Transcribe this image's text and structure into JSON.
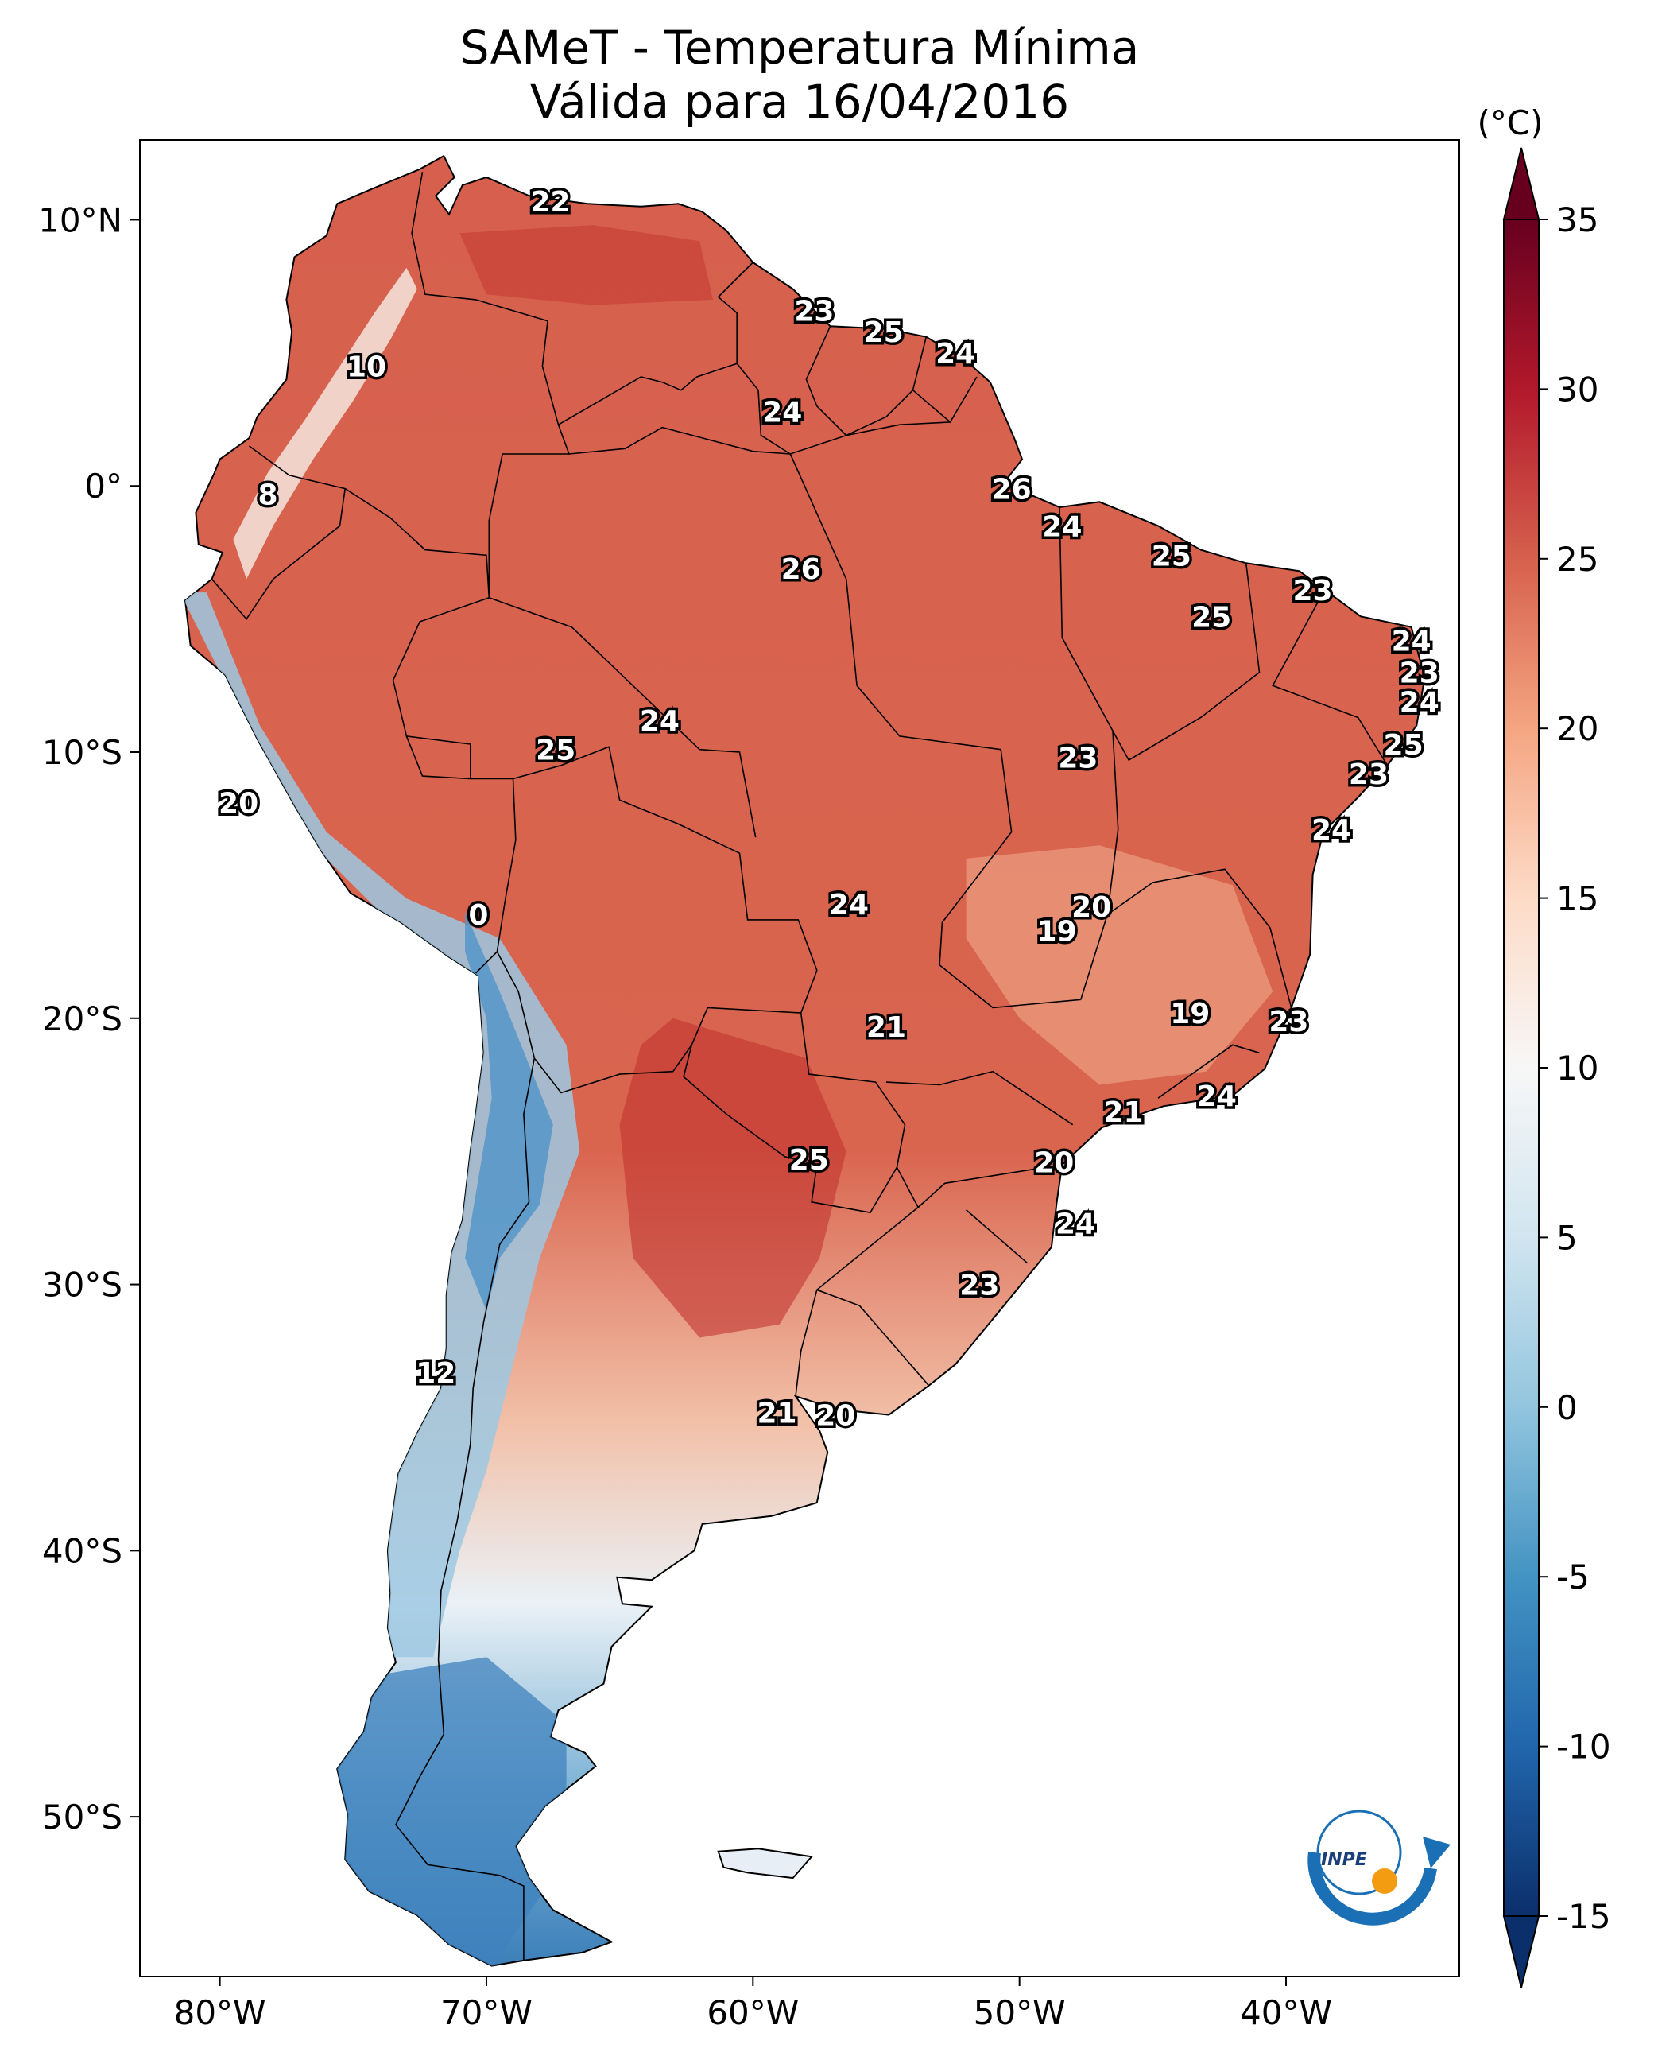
{
  "title_line1": "SAMeT - Temperatura Mínima",
  "title_line2": "Válida para 16/04/2016",
  "colorbar": {
    "unit": "(°C)",
    "ticks": [
      "35",
      "30",
      "25",
      "20",
      "15",
      "10",
      "5",
      "0",
      "-5",
      "-10",
      "-15"
    ],
    "tick_values": [
      35,
      30,
      25,
      20,
      15,
      10,
      5,
      0,
      -5,
      -10,
      -15
    ],
    "range": [
      -15,
      35
    ],
    "colors": [
      "#0b2f6b",
      "#2166ac",
      "#4393c3",
      "#92c5de",
      "#d1e5f0",
      "#f7f7f7",
      "#fddbc7",
      "#f4a582",
      "#d6604d",
      "#b2182b",
      "#67001f"
    ]
  },
  "axes": {
    "lon_labels": [
      "80°W",
      "70°W",
      "60°W",
      "50°W",
      "40°W"
    ],
    "lon_values": [
      -80,
      -70,
      -60,
      -50,
      -40
    ],
    "lat_labels": [
      "10°N",
      "0°",
      "10°S",
      "20°S",
      "30°S",
      "40°S",
      "50°S"
    ],
    "lat_values": [
      10,
      0,
      -10,
      -20,
      -30,
      -40,
      -50
    ],
    "extent": {
      "lon": [
        -83,
        -33.5
      ],
      "lat": [
        -56,
        13
      ]
    }
  },
  "isotherm_labels": [
    {
      "t": "22",
      "lon": -67.6,
      "lat": 10.7
    },
    {
      "t": "10",
      "lon": -74.5,
      "lat": 4.5
    },
    {
      "t": "8",
      "lon": -78.2,
      "lat": -0.3
    },
    {
      "t": "23",
      "lon": -57.7,
      "lat": 6.6
    },
    {
      "t": "25",
      "lon": -55.1,
      "lat": 5.8
    },
    {
      "t": "24",
      "lon": -52.4,
      "lat": 5.0
    },
    {
      "t": "24",
      "lon": -58.9,
      "lat": 2.8
    },
    {
      "t": "26",
      "lon": -50.3,
      "lat": -0.1
    },
    {
      "t": "24",
      "lon": -48.4,
      "lat": -1.5
    },
    {
      "t": "26",
      "lon": -58.2,
      "lat": -3.1
    },
    {
      "t": "25",
      "lon": -44.3,
      "lat": -2.6
    },
    {
      "t": "23",
      "lon": -39.0,
      "lat": -3.9
    },
    {
      "t": "25",
      "lon": -42.8,
      "lat": -4.9
    },
    {
      "t": "24",
      "lon": -35.3,
      "lat": -5.8
    },
    {
      "t": "23",
      "lon": -35.0,
      "lat": -7.0
    },
    {
      "t": "24",
      "lon": -35.0,
      "lat": -8.1
    },
    {
      "t": "25",
      "lon": -35.6,
      "lat": -9.7
    },
    {
      "t": "23",
      "lon": -36.9,
      "lat": -10.8
    },
    {
      "t": "24",
      "lon": -38.3,
      "lat": -12.9
    },
    {
      "t": "23",
      "lon": -47.8,
      "lat": -10.2
    },
    {
      "t": "24",
      "lon": -63.5,
      "lat": -8.8
    },
    {
      "t": "25",
      "lon": -67.4,
      "lat": -9.9
    },
    {
      "t": "20",
      "lon": -79.3,
      "lat": -11.9
    },
    {
      "t": "0",
      "lon": -70.3,
      "lat": -16.1
    },
    {
      "t": "24",
      "lon": -56.4,
      "lat": -15.7
    },
    {
      "t": "20",
      "lon": -47.3,
      "lat": -15.8
    },
    {
      "t": "19",
      "lon": -48.6,
      "lat": -16.7
    },
    {
      "t": "21",
      "lon": -55.0,
      "lat": -20.3
    },
    {
      "t": "19",
      "lon": -43.6,
      "lat": -19.8
    },
    {
      "t": "23",
      "lon": -39.9,
      "lat": -20.1
    },
    {
      "t": "24",
      "lon": -42.6,
      "lat": -22.9
    },
    {
      "t": "21",
      "lon": -46.1,
      "lat": -23.5
    },
    {
      "t": "25",
      "lon": -57.9,
      "lat": -25.3
    },
    {
      "t": "20",
      "lon": -48.7,
      "lat": -25.4
    },
    {
      "t": "24",
      "lon": -47.9,
      "lat": -27.7
    },
    {
      "t": "23",
      "lon": -51.5,
      "lat": -30.0
    },
    {
      "t": "12",
      "lon": -71.9,
      "lat": -33.3
    },
    {
      "t": "21",
      "lon": -59.1,
      "lat": -34.8
    },
    {
      "t": "20",
      "lon": -56.9,
      "lat": -34.9
    }
  ]
}
